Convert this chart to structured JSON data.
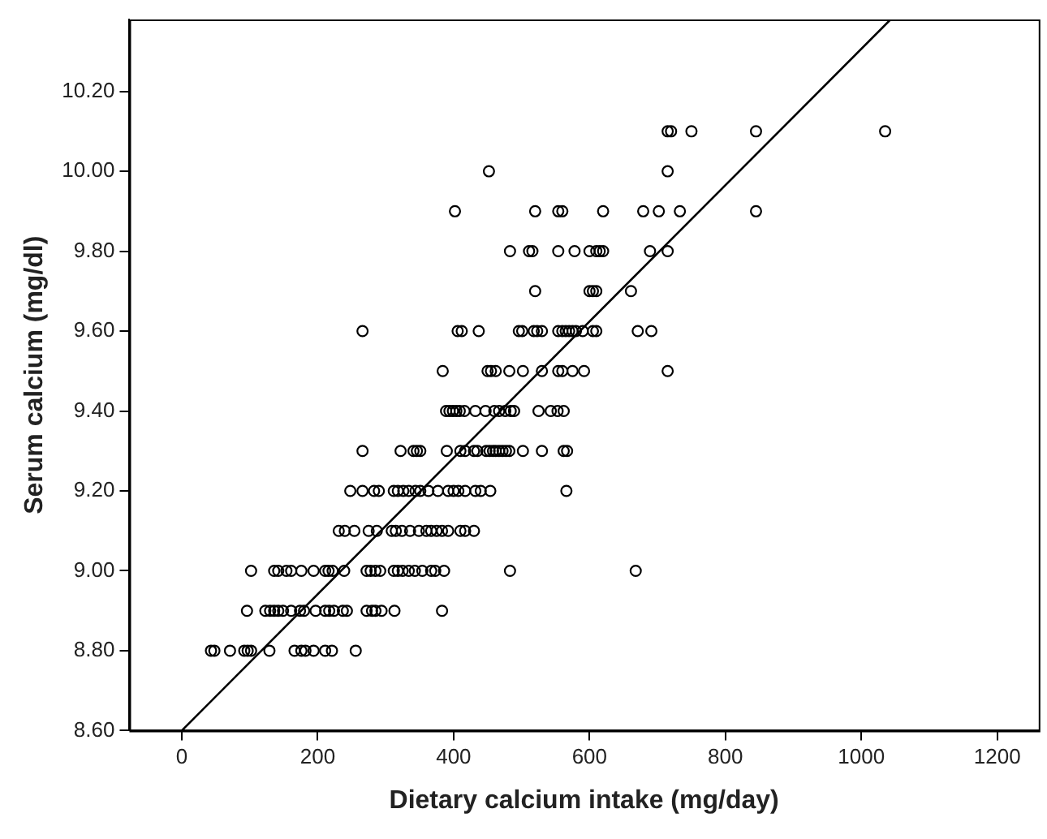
{
  "chart_data": {
    "type": "scatter",
    "xlabel": "Dietary calcium intake (mg/day)",
    "ylabel": "Serum calcium (mg/dl)",
    "grid": false,
    "legend": false,
    "xlim": [
      -77,
      1261
    ],
    "ylim": [
      8.6,
      10.38
    ],
    "xticks": [
      0,
      200,
      400,
      600,
      800,
      1000,
      1200
    ],
    "yticks": [
      {
        "value": 8.6,
        "label": "8.60"
      },
      {
        "value": 8.8,
        "label": "8.80"
      },
      {
        "value": 9.0,
        "label": "9.00"
      },
      {
        "value": 9.2,
        "label": "9.20"
      },
      {
        "value": 9.4,
        "label": "9.40"
      },
      {
        "value": 9.6,
        "label": "9.60"
      },
      {
        "value": 9.8,
        "label": "9.80"
      },
      {
        "value": 10.0,
        "label": "10.00"
      },
      {
        "value": 10.2,
        "label": "10.20"
      }
    ],
    "series": [
      {
        "type": "scatter",
        "marker": "circle",
        "color": "#000000",
        "x": [
          715,
          720,
          750,
          845,
          1035,
          452,
          715,
          402,
          520,
          554,
          560,
          620,
          679,
          702,
          733,
          845,
          483,
          511,
          516,
          554,
          578,
          600,
          610,
          615,
          620,
          689,
          715,
          520,
          600,
          605,
          610,
          661,
          266,
          406,
          412,
          437,
          496,
          501,
          518,
          523,
          530,
          554,
          560,
          565,
          570,
          575,
          580,
          590,
          605,
          610,
          671,
          691,
          384,
          450,
          455,
          462,
          482,
          502,
          530,
          554,
          560,
          575,
          592,
          715,
          389,
          394,
          399,
          404,
          409,
          416,
          432,
          447,
          460,
          467,
          476,
          484,
          489,
          525,
          543,
          553,
          562,
          266,
          322,
          341,
          346,
          351,
          390,
          410,
          417,
          430,
          435,
          448,
          453,
          458,
          462,
          467,
          472,
          477,
          482,
          502,
          530,
          562,
          567,
          248,
          266,
          283,
          290,
          312,
          318,
          326,
          334,
          344,
          351,
          363,
          377,
          392,
          400,
          407,
          417,
          432,
          440,
          454,
          566,
          231,
          240,
          254,
          275,
          287,
          309,
          315,
          324,
          336,
          349,
          360,
          367,
          375,
          383,
          392,
          410,
          417,
          430,
          102,
          136,
          142,
          154,
          161,
          176,
          194,
          211,
          216,
          222,
          239,
          272,
          278,
          285,
          292,
          312,
          318,
          325,
          334,
          343,
          354,
          367,
          373,
          386,
          483,
          668,
          96,
          123,
          130,
          136,
          142,
          149,
          161,
          174,
          180,
          197,
          211,
          217,
          224,
          237,
          243,
          272,
          280,
          285,
          294,
          313,
          383,
          43,
          48,
          71,
          92,
          97,
          102,
          129,
          166,
          176,
          182,
          194,
          211,
          221,
          256
        ],
        "values": [
          10.1,
          10.1,
          10.1,
          10.1,
          10.1,
          10.0,
          10.0,
          9.9,
          9.9,
          9.9,
          9.9,
          9.9,
          9.9,
          9.9,
          9.9,
          9.9,
          9.8,
          9.8,
          9.8,
          9.8,
          9.8,
          9.8,
          9.8,
          9.8,
          9.8,
          9.8,
          9.8,
          9.7,
          9.7,
          9.7,
          9.7,
          9.7,
          9.6,
          9.6,
          9.6,
          9.6,
          9.6,
          9.6,
          9.6,
          9.6,
          9.6,
          9.6,
          9.6,
          9.6,
          9.6,
          9.6,
          9.6,
          9.6,
          9.6,
          9.6,
          9.6,
          9.6,
          9.5,
          9.5,
          9.5,
          9.5,
          9.5,
          9.5,
          9.5,
          9.5,
          9.5,
          9.5,
          9.5,
          9.5,
          9.4,
          9.4,
          9.4,
          9.4,
          9.4,
          9.4,
          9.4,
          9.4,
          9.4,
          9.4,
          9.4,
          9.4,
          9.4,
          9.4,
          9.4,
          9.4,
          9.4,
          9.3,
          9.3,
          9.3,
          9.3,
          9.3,
          9.3,
          9.3,
          9.3,
          9.3,
          9.3,
          9.3,
          9.3,
          9.3,
          9.3,
          9.3,
          9.3,
          9.3,
          9.3,
          9.3,
          9.3,
          9.3,
          9.3,
          9.2,
          9.2,
          9.2,
          9.2,
          9.2,
          9.2,
          9.2,
          9.2,
          9.2,
          9.2,
          9.2,
          9.2,
          9.2,
          9.2,
          9.2,
          9.2,
          9.2,
          9.2,
          9.2,
          9.2,
          9.1,
          9.1,
          9.1,
          9.1,
          9.1,
          9.1,
          9.1,
          9.1,
          9.1,
          9.1,
          9.1,
          9.1,
          9.1,
          9.1,
          9.1,
          9.1,
          9.1,
          9.1,
          9.0,
          9.0,
          9.0,
          9.0,
          9.0,
          9.0,
          9.0,
          9.0,
          9.0,
          9.0,
          9.0,
          9.0,
          9.0,
          9.0,
          9.0,
          9.0,
          9.0,
          9.0,
          9.0,
          9.0,
          9.0,
          9.0,
          9.0,
          9.0,
          9.0,
          9.0,
          8.9,
          8.9,
          8.9,
          8.9,
          8.9,
          8.9,
          8.9,
          8.9,
          8.9,
          8.9,
          8.9,
          8.9,
          8.9,
          8.9,
          8.9,
          8.9,
          8.9,
          8.9,
          8.9,
          8.9,
          8.9,
          8.8,
          8.8,
          8.8,
          8.8,
          8.8,
          8.8,
          8.8,
          8.8,
          8.8,
          8.8,
          8.8,
          8.8,
          8.8,
          8.8
        ]
      },
      {
        "type": "line",
        "marker": "none",
        "color": "#000000",
        "x": [
          0,
          1043
        ],
        "values": [
          8.6,
          10.38
        ]
      }
    ]
  }
}
